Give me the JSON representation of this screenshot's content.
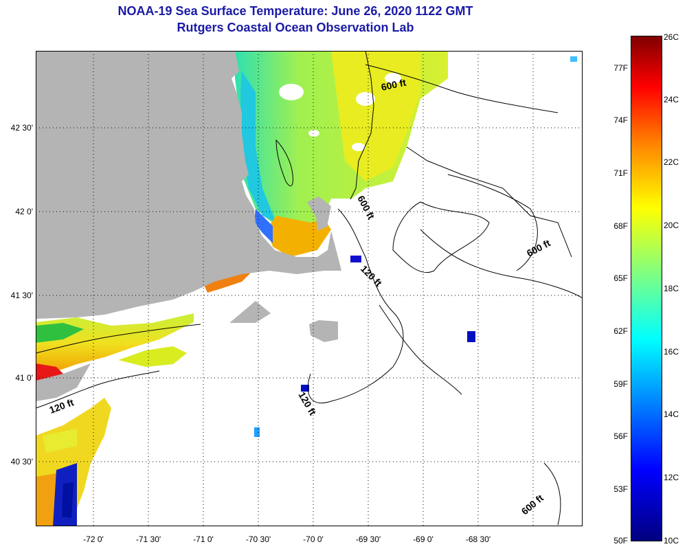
{
  "header": {
    "title": "NOAA-19 Sea Surface Temperature:  June 26, 2020 1122 GMT",
    "subtitle": "Rutgers Coastal Ocean Observation Lab"
  },
  "axes": {
    "latitude_labels": [
      "42 30'",
      "42 0'",
      "41 30'",
      "41 0'",
      "40 30'"
    ],
    "longitude_labels": [
      "-72 0'",
      "-71 30'",
      "-71 0'",
      "-70 30'",
      "-70 0'",
      "-69 30'",
      "-69 0'",
      "-68 30'"
    ]
  },
  "colorbar": {
    "fahrenheit_labels": [
      "77F",
      "74F",
      "71F",
      "68F",
      "65F",
      "62F",
      "59F",
      "56F",
      "53F",
      "50F"
    ],
    "celsius_labels": [
      "26C",
      "24C",
      "22C",
      "20C",
      "18C",
      "16C",
      "14C",
      "12C",
      "10C"
    ],
    "colors": [
      "#00007f",
      "#0000ff",
      "#0080ff",
      "#00ffff",
      "#80ff80",
      "#ffff00",
      "#ff8000",
      "#ff0000",
      "#7f0000"
    ]
  },
  "depth_contours": {
    "labels": [
      "600 ft",
      "600 ft",
      "600 ft",
      "600 ft",
      "120 ft",
      "120 ft",
      "120 ft"
    ]
  },
  "colors": {
    "land": "#b4b4b4",
    "title": "#1a1aa6"
  }
}
